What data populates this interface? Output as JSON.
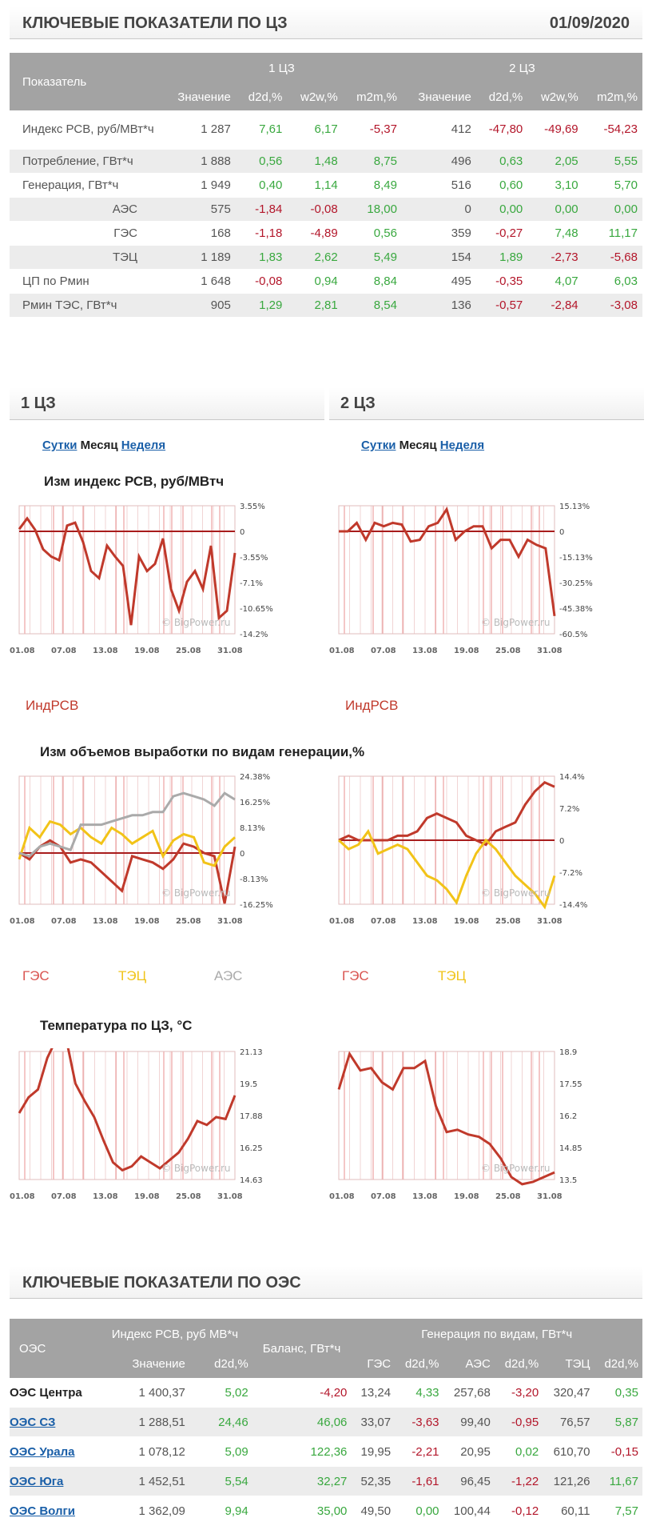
{
  "header": {
    "title": "КЛЮЧЕВЫЕ ПОКАЗАТЕЛИ ПО ЦЗ",
    "date": "01/09/2020"
  },
  "kp": {
    "col_indicator": "Показатель",
    "zone1": "1 ЦЗ",
    "zone2": "2 ЦЗ",
    "cols": [
      "Значение",
      "d2d,%",
      "w2w,%",
      "m2m,%",
      "Значение",
      "d2d,%",
      "w2w,%",
      "m2m,%"
    ],
    "rows": [
      {
        "label": "Индекс РСВ, руб/МВт*ч",
        "vals": [
          "1 287",
          "7,61",
          "6,17",
          "-5,37",
          "412",
          "-47,80",
          "-49,69",
          "-54,23"
        ]
      },
      {
        "label": "Потребление, ГВт*ч",
        "vals": [
          "1 888",
          "0,56",
          "1,48",
          "8,75",
          "496",
          "0,63",
          "2,05",
          "5,55"
        ]
      },
      {
        "label": "Генерация, ГВт*ч",
        "vals": [
          "1 949",
          "0,40",
          "1,14",
          "8,49",
          "516",
          "0,60",
          "3,10",
          "5,70"
        ]
      },
      {
        "label": "АЭС",
        "vals": [
          "575",
          "-1,84",
          "-0,08",
          "18,00",
          "0",
          "0,00",
          "0,00",
          "0,00"
        ],
        "sub": true
      },
      {
        "label": "ГЭС",
        "vals": [
          "168",
          "-1,18",
          "-4,89",
          "0,56",
          "359",
          "-0,27",
          "7,48",
          "11,17"
        ],
        "sub": true
      },
      {
        "label": "ТЭЦ",
        "vals": [
          "1 189",
          "1,83",
          "2,62",
          "5,49",
          "154",
          "1,89",
          "-2,73",
          "-5,68"
        ],
        "sub": true
      },
      {
        "label": "ЦП по Рмин",
        "vals": [
          "1 648",
          "-0,08",
          "0,94",
          "8,84",
          "495",
          "-0,35",
          "4,07",
          "6,03"
        ]
      },
      {
        "label": "Рмин ТЭС, ГВт*ч",
        "vals": [
          "905",
          "1,29",
          "2,81",
          "8,54",
          "136",
          "-0,57",
          "-2,84",
          "-3,08"
        ]
      }
    ]
  },
  "zones": {
    "z1": "1 ЦЗ",
    "z2": "2 ЦЗ",
    "tab_day": "Сутки",
    "tab_month": "Месяц",
    "tab_week": "Неделя"
  },
  "charts": {
    "rsv_title": "Изм индекс РСВ, руб/МВтч",
    "gen_title": "Изм объемов выработки по видам генерации,%",
    "temp_title": "Температура по ЦЗ, °С",
    "watermark": "© BigPower.ru",
    "xticks": [
      "01.08",
      "07.08",
      "13.08",
      "19.08",
      "25.08",
      "31.08"
    ],
    "rsv1_y": [
      "3.55%",
      "0",
      "-3.55%",
      "-7.1%",
      "-10.65%",
      "-14.2%"
    ],
    "rsv2_y": [
      "15.13%",
      "0",
      "-15.13%",
      "-30.25%",
      "-45.38%",
      "-60.5%"
    ],
    "gen1_y": [
      "24.38%",
      "16.25%",
      "8.13%",
      "0",
      "-8.13%",
      "-16.25%"
    ],
    "gen2_y": [
      "14.4%",
      "7.2%",
      "0",
      "-7.2%",
      "-14.4%"
    ],
    "temp1_y": [
      "21.13",
      "19.5",
      "17.88",
      "16.25",
      "14.63"
    ],
    "temp2_y": [
      "18.9",
      "17.55",
      "16.2",
      "14.85",
      "13.5"
    ],
    "leg_rsv": "ИндРСВ",
    "leg_ges": "ГЭС",
    "leg_tec": "ТЭЦ",
    "leg_aes": "АЭС"
  },
  "chart_data": [
    {
      "type": "line",
      "title": "Изм индекс РСВ, руб/МВтч",
      "series": [
        {
          "name": "ИндРСВ",
          "values": [
            0.3,
            1.8,
            0.2,
            -2.5,
            -3.5,
            -4,
            0.8,
            1.2,
            -1.5,
            -5.5,
            -6.5,
            -2,
            -3.5,
            -4.8,
            -13,
            -3.5,
            -5.5,
            -4.5,
            -1,
            -8,
            -11,
            -7,
            -5.5,
            -8,
            -2,
            -12,
            -11,
            -3
          ]
        }
      ],
      "ylim": [
        -14.2,
        3.55
      ]
    },
    {
      "type": "line",
      "title": "Изм индекс РСВ, руб/МВтч",
      "series": [
        {
          "name": "ИндРСВ",
          "values": [
            0,
            0,
            5,
            -5,
            5,
            3,
            5,
            4,
            -6,
            -5,
            3,
            5,
            13,
            -5,
            0,
            3,
            3,
            -10,
            -5,
            -5,
            -15,
            -5,
            -8,
            -10,
            -50
          ]
        }
      ],
      "ylim": [
        -60.5,
        15.13
      ]
    },
    {
      "type": "line",
      "title": "Изм объемов выработки по видам генерации,%",
      "series": [
        {
          "name": "ГЭС",
          "values": [
            0,
            -2,
            2,
            4,
            2,
            -3,
            -2,
            -3,
            -6,
            -9,
            -12,
            -1,
            -2,
            -3,
            -5,
            -2,
            3,
            2,
            0,
            -1,
            -16,
            2
          ]
        },
        {
          "name": "ТЭЦ",
          "values": [
            -2,
            8,
            5,
            10,
            9,
            6,
            8,
            5,
            3,
            8,
            6,
            3,
            5,
            7,
            -1,
            4,
            6,
            5,
            -3,
            -4,
            2,
            5
          ]
        },
        {
          "name": "АЭС",
          "values": [
            0,
            -1,
            2,
            3,
            2,
            1,
            9,
            9,
            9,
            10,
            11,
            12,
            12,
            13,
            13,
            18,
            19,
            18,
            17,
            15,
            19,
            17
          ]
        }
      ],
      "ylim": [
        -16.25,
        24.38
      ]
    },
    {
      "type": "line",
      "title": "Изм объемов выработки по видам генерации,%",
      "series": [
        {
          "name": "ГЭС",
          "values": [
            0,
            1,
            0,
            0,
            0,
            0,
            1,
            1,
            2,
            5,
            6,
            5,
            4,
            1,
            0,
            -1,
            2,
            3,
            4,
            8,
            11,
            13,
            12
          ]
        },
        {
          "name": "ТЭЦ",
          "values": [
            0,
            -2,
            -1,
            2,
            -3,
            -2,
            -1,
            -2,
            -5,
            -8,
            -9,
            -11,
            -14,
            -8,
            -3,
            0,
            -2,
            -5,
            -8,
            -10,
            -12,
            -15,
            -8
          ]
        }
      ],
      "ylim": [
        -14.4,
        14.4
      ]
    },
    {
      "type": "line",
      "title": "Температура по ЦЗ, °С",
      "series": [
        {
          "name": "1 ЦЗ",
          "values": [
            18,
            18.8,
            19.2,
            20.8,
            21.8,
            21.8,
            19.5,
            18.6,
            17.8,
            16.6,
            15.5,
            15.1,
            15.3,
            15.8,
            15.5,
            15.2,
            15.6,
            16,
            16.7,
            17.6,
            17.4,
            17.8,
            17.7,
            18.9
          ]
        }
      ],
      "ylim": [
        14.63,
        21.13
      ]
    },
    {
      "type": "line",
      "title": "Температура по ЦЗ, °С",
      "series": [
        {
          "name": "2 ЦЗ",
          "values": [
            17.3,
            18.8,
            18.1,
            18.2,
            17.6,
            17.3,
            18.2,
            18.2,
            18.5,
            16.6,
            15.5,
            15.6,
            15.4,
            15.3,
            15,
            14.4,
            13.6,
            13.3,
            13.4,
            13.6,
            13.8
          ]
        }
      ],
      "ylim": [
        13.5,
        18.9
      ]
    }
  ],
  "oes": {
    "title": "КЛЮЧЕВЫЕ ПОКАЗАТЕЛИ ПО ОЭС",
    "col_oes": "ОЭС",
    "col_rsv": "Индекс РСВ, руб МВ*ч",
    "col_bal": "Баланс, ГВт*ч",
    "col_gen": "Генерация по видам, ГВт*ч",
    "sub": [
      "Значение",
      "d2d,%",
      "ГЭС",
      "d2d,%",
      "АЭС",
      "d2d,%",
      "ТЭЦ",
      "d2d,%"
    ],
    "rows": [
      {
        "name": "ОЭС Центра",
        "link": false,
        "vals": [
          "1 400,37",
          "5,02",
          "-4,20",
          "13,24",
          "4,33",
          "257,68",
          "-3,20",
          "320,47",
          "0,35"
        ]
      },
      {
        "name": "ОЭС СЗ",
        "link": true,
        "vals": [
          "1 288,51",
          "24,46",
          "46,06",
          "33,07",
          "-3,63",
          "99,40",
          "-0,95",
          "76,57",
          "5,87"
        ]
      },
      {
        "name": "ОЭС Урала",
        "link": true,
        "vals": [
          "1 078,12",
          "5,09",
          "122,36",
          "19,95",
          "-2,21",
          "20,95",
          "0,02",
          "610,70",
          "-0,15"
        ]
      },
      {
        "name": "ОЭС Юга",
        "link": true,
        "vals": [
          "1 452,51",
          "5,54",
          "32,27",
          "52,35",
          "-1,61",
          "96,45",
          "-1,22",
          "121,26",
          "11,67"
        ]
      },
      {
        "name": "ОЭС Волги",
        "link": true,
        "vals": [
          "1 362,09",
          "9,94",
          "35,00",
          "49,50",
          "0,00",
          "100,44",
          "-0,12",
          "60,11",
          "7,57"
        ]
      }
    ]
  }
}
